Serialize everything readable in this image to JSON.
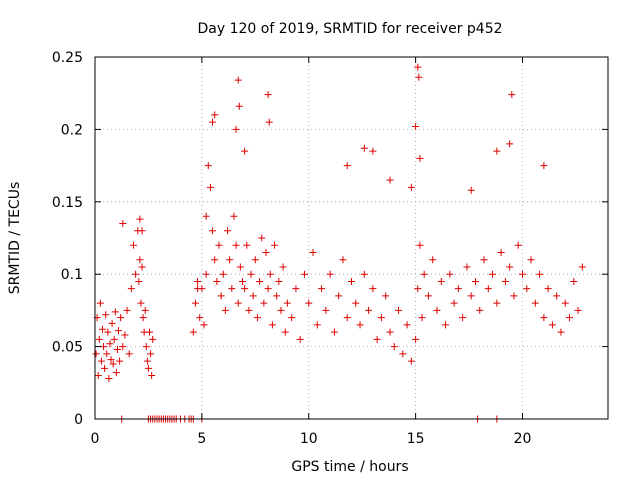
{
  "chart_data": {
    "type": "scatter",
    "title": "Day 120 of 2019, SRMTID for receiver p452",
    "xlabel": "GPS time / hours",
    "ylabel": "SRMTID / TECUs",
    "xlim": [
      0,
      24
    ],
    "ylim": [
      0,
      0.25
    ],
    "x_ticks": [
      0,
      5,
      10,
      15,
      20
    ],
    "x_tick_labels": [
      "0",
      "5",
      "10",
      "15",
      "20"
    ],
    "y_ticks": [
      0,
      0.05,
      0.1,
      0.15,
      0.2,
      0.25
    ],
    "y_tick_labels": [
      "0",
      "0.05",
      "0.1",
      "0.15",
      "0.2",
      "0.25"
    ],
    "grid": true,
    "marker": "+",
    "color": "#e00000",
    "series": [
      {
        "name": "SRMTID",
        "x": [
          0.05,
          0.1,
          0.15,
          0.2,
          0.25,
          0.3,
          0.35,
          0.4,
          0.45,
          0.5,
          0.55,
          0.6,
          0.65,
          0.7,
          0.75,
          0.8,
          0.85,
          0.9,
          0.95,
          1.0,
          1.05,
          1.1,
          1.15,
          1.2,
          1.3,
          1.4,
          1.5,
          1.6,
          1.7,
          1.8,
          1.9,
          2.0,
          2.05,
          2.1,
          2.15,
          2.2,
          2.25,
          2.3,
          2.35,
          2.4,
          2.45,
          2.5,
          2.55,
          2.6,
          2.65,
          2.7,
          4.6,
          4.7,
          4.8,
          4.9,
          5.0,
          5.1,
          5.2,
          5.3,
          5.4,
          5.5,
          5.6,
          5.7,
          5.8,
          5.9,
          6.0,
          6.1,
          6.2,
          6.3,
          6.4,
          6.5,
          6.6,
          6.7,
          6.8,
          6.9,
          7.0,
          7.1,
          7.2,
          7.3,
          7.4,
          7.5,
          7.6,
          7.7,
          7.8,
          7.9,
          8.0,
          8.1,
          8.2,
          8.3,
          8.4,
          8.5,
          8.6,
          8.7,
          8.8,
          8.9,
          9.0,
          9.2,
          9.4,
          9.6,
          9.8,
          10.0,
          10.2,
          10.4,
          10.6,
          10.8,
          11.0,
          11.2,
          11.4,
          11.6,
          11.8,
          12.0,
          12.2,
          12.4,
          12.6,
          12.8,
          13.0,
          13.2,
          13.4,
          13.6,
          13.8,
          14.0,
          14.2,
          14.4,
          14.6,
          14.8,
          15.0,
          15.1,
          15.2,
          15.3,
          15.4,
          15.6,
          15.8,
          16.0,
          16.2,
          16.4,
          16.6,
          16.8,
          17.0,
          17.2,
          17.4,
          17.6,
          17.8,
          18.0,
          18.2,
          18.4,
          18.6,
          18.8,
          19.0,
          19.2,
          19.4,
          19.6,
          19.8,
          20.0,
          20.2,
          20.4,
          20.6,
          20.8,
          21.0,
          21.2,
          21.4,
          21.6,
          21.8,
          22.0,
          22.2,
          22.4,
          22.6,
          22.8,
          6.7,
          6.75,
          8.1,
          8.15,
          15.1,
          15.15,
          19.5,
          5.5,
          5.6,
          15.0,
          6.6,
          7.0,
          12.6,
          13.0,
          15.2,
          18.8,
          19.4,
          11.8,
          13.8,
          14.8,
          17.6,
          21.0,
          1.3,
          2.1,
          2.2,
          4.8,
          5.2,
          1.25,
          2.5,
          2.6,
          2.7,
          2.8,
          2.9,
          3.0,
          3.1,
          3.2,
          3.3,
          3.4,
          3.5,
          3.6,
          3.7,
          3.8,
          4.0,
          4.2,
          4.4,
          4.5,
          4.6,
          5.0,
          17.9,
          18.8
        ],
        "y": [
          0.045,
          0.07,
          0.03,
          0.055,
          0.08,
          0.04,
          0.062,
          0.05,
          0.035,
          0.072,
          0.045,
          0.06,
          0.028,
          0.052,
          0.041,
          0.066,
          0.038,
          0.055,
          0.074,
          0.032,
          0.048,
          0.061,
          0.04,
          0.07,
          0.05,
          0.058,
          0.075,
          0.045,
          0.09,
          0.12,
          0.1,
          0.13,
          0.095,
          0.11,
          0.08,
          0.105,
          0.07,
          0.06,
          0.075,
          0.05,
          0.04,
          0.035,
          0.06,
          0.045,
          0.03,
          0.055,
          0.06,
          0.08,
          0.095,
          0.07,
          0.09,
          0.065,
          0.14,
          0.175,
          0.16,
          0.13,
          0.11,
          0.095,
          0.12,
          0.085,
          0.1,
          0.075,
          0.13,
          0.11,
          0.09,
          0.14,
          0.12,
          0.08,
          0.105,
          0.095,
          0.09,
          0.12,
          0.075,
          0.1,
          0.085,
          0.11,
          0.07,
          0.095,
          0.125,
          0.08,
          0.115,
          0.09,
          0.1,
          0.065,
          0.12,
          0.085,
          0.095,
          0.075,
          0.105,
          0.06,
          0.08,
          0.07,
          0.09,
          0.055,
          0.1,
          0.08,
          0.115,
          0.065,
          0.09,
          0.075,
          0.1,
          0.06,
          0.085,
          0.11,
          0.07,
          0.095,
          0.08,
          0.065,
          0.1,
          0.075,
          0.09,
          0.055,
          0.07,
          0.085,
          0.06,
          0.05,
          0.075,
          0.045,
          0.065,
          0.04,
          0.055,
          0.09,
          0.12,
          0.07,
          0.1,
          0.085,
          0.11,
          0.075,
          0.095,
          0.065,
          0.1,
          0.08,
          0.09,
          0.07,
          0.105,
          0.085,
          0.095,
          0.075,
          0.11,
          0.09,
          0.1,
          0.08,
          0.115,
          0.095,
          0.105,
          0.085,
          0.12,
          0.1,
          0.09,
          0.11,
          0.08,
          0.1,
          0.07,
          0.09,
          0.065,
          0.085,
          0.06,
          0.08,
          0.07,
          0.095,
          0.075,
          0.105,
          0.234,
          0.216,
          0.224,
          0.205,
          0.243,
          0.236,
          0.224,
          0.205,
          0.21,
          0.202,
          0.2,
          0.185,
          0.187,
          0.185,
          0.18,
          0.185,
          0.19,
          0.175,
          0.165,
          0.16,
          0.158,
          0.175,
          0.135,
          0.138,
          0.13,
          0.09,
          0.1,
          0,
          0,
          0,
          0,
          0,
          0,
          0,
          0,
          0,
          0,
          0,
          0,
          0,
          0,
          0,
          0,
          0,
          0,
          0,
          0,
          0,
          0,
          0
        ]
      }
    ]
  }
}
